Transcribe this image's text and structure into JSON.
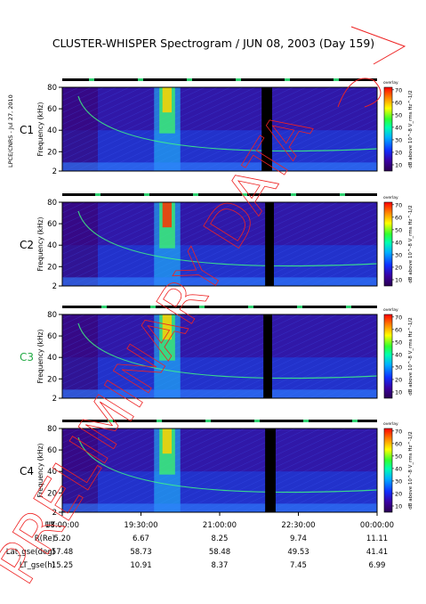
{
  "title": "CLUSTER-WHISPER Spectrogram / JUN 08, 2003 (Day 159)",
  "credit": "LPCE/CNRS - Jul 27, 2010",
  "watermark": "PRELIMINARY DATA",
  "colors": {
    "c1": "#000000",
    "c2": "#000000",
    "c3": "#22aa44",
    "c4": "#000000",
    "watermark": "#ee2222"
  },
  "chart_data": [
    {
      "type": "heatmap",
      "panel": "C1",
      "ylabel": "Frequency (kHz)",
      "yticks": [
        2,
        20,
        40,
        60,
        80
      ],
      "ylim": [
        2,
        80
      ],
      "colorbar": {
        "label": "dB above 10^-8 V_rms Hz^-1/2",
        "ticks": [
          10,
          20,
          30,
          40,
          50,
          60,
          70
        ],
        "range": [
          5,
          72
        ],
        "header": "overlay"
      },
      "gap_utc": [
        "21:48",
        "22:00"
      ]
    },
    {
      "type": "heatmap",
      "panel": "C2",
      "ylabel": "Frequency (kHz)",
      "yticks": [
        2,
        20,
        40,
        60,
        80
      ],
      "ylim": [
        2,
        80
      ],
      "colorbar": {
        "label": "dB above 10^-8 V_rms Hz^-1/2",
        "ticks": [
          10,
          20,
          30,
          40,
          50,
          60,
          70
        ],
        "range": [
          5,
          72
        ],
        "header": "overlay"
      },
      "gap_utc": [
        "21:52",
        "22:02"
      ]
    },
    {
      "type": "heatmap",
      "panel": "C3",
      "ylabel": "Frequency (kHz)",
      "yticks": [
        2,
        20,
        40,
        60,
        80
      ],
      "ylim": [
        2,
        80
      ],
      "colorbar": {
        "label": "dB above 10^-8 V_rms Hz^-1/2",
        "ticks": [
          10,
          20,
          30,
          40,
          50,
          60,
          70
        ],
        "range": [
          5,
          72
        ],
        "header": "overlay"
      },
      "gap_utc": [
        "21:50",
        "22:00"
      ]
    },
    {
      "type": "heatmap",
      "panel": "C4",
      "ylabel": "Frequency (kHz)",
      "yticks": [
        2,
        20,
        40,
        60,
        80
      ],
      "ylim": [
        2,
        80
      ],
      "colorbar": {
        "label": "dB above 10^-8 V_rms Hz^-1/2",
        "ticks": [
          10,
          20,
          30,
          40,
          50,
          60,
          70
        ],
        "range": [
          5,
          72
        ],
        "header": "overlay"
      },
      "gap_utc": [
        "21:52",
        "22:04"
      ]
    }
  ],
  "xaxis": {
    "ticks": [
      "18:00:00",
      "19:30:00",
      "21:00:00",
      "22:30:00",
      "00:00:00"
    ]
  },
  "ephemeris": [
    {
      "label": "UT",
      "values": [
        "18:00:00",
        "19:30:00",
        "21:00:00",
        "22:30:00",
        "00:00:00"
      ]
    },
    {
      "label": "R(Re)",
      "values": [
        "5.20",
        "6.67",
        "8.25",
        "9.74",
        "11.11"
      ]
    },
    {
      "label": "Lat_gse(deg)",
      "values": [
        "57.48",
        "58.73",
        "58.48",
        "49.53",
        "41.41"
      ]
    },
    {
      "label": "LT_gse(h)",
      "values": [
        "15.25",
        "10.91",
        "8.37",
        "7.45",
        "6.99"
      ]
    }
  ]
}
